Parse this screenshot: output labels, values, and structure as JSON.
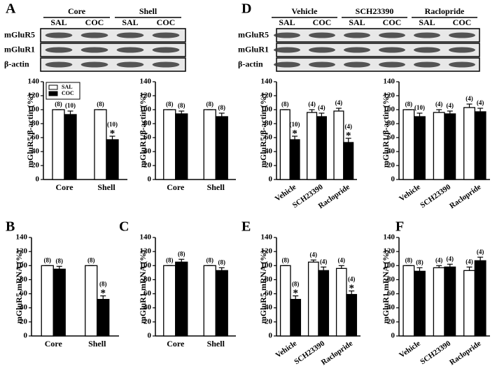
{
  "blots": [
    {
      "panel": "A",
      "groups": [
        {
          "label": "Core",
          "lanes": [
            "SAL",
            "COC"
          ]
        },
        {
          "label": "Shell",
          "lanes": [
            "SAL",
            "COC"
          ]
        }
      ],
      "rows": [
        "mGluR5",
        "mGluR1",
        "β-actin"
      ]
    },
    {
      "panel": "D",
      "groups": [
        {
          "label": "Vehicle",
          "lanes": [
            "SAL",
            "COC"
          ]
        },
        {
          "label": "SCH23390",
          "lanes": [
            "SAL",
            "COC"
          ]
        },
        {
          "label": "Raclopride",
          "lanes": [
            "SAL",
            "COC"
          ]
        }
      ],
      "rows": [
        "mGluR5",
        "mGluR1",
        "β-actin"
      ]
    }
  ],
  "chart_data": [
    {
      "type": "bar",
      "ylabel": "mGluR5/β-actin (%)",
      "categories": [
        "Core",
        "Shell"
      ],
      "ylim": [
        0,
        140
      ],
      "yticks": [
        0,
        20,
        40,
        60,
        80,
        100,
        120,
        140
      ],
      "legend": "upper left",
      "series": [
        {
          "name": "SAL",
          "color": "#ffffff",
          "values": [
            100,
            100
          ],
          "errors": [
            0,
            0
          ],
          "n_labels": [
            "(8)",
            "(8)"
          ],
          "sig": [
            null,
            null
          ]
        },
        {
          "name": "COC",
          "color": "#000000",
          "values": [
            93,
            57
          ],
          "errors": [
            5,
            5
          ],
          "n_labels": [
            "(10)",
            "(10)"
          ],
          "sig": [
            null,
            "*"
          ]
        }
      ]
    },
    {
      "type": "bar",
      "ylabel": "mGluR1/β-actin (%)",
      "categories": [
        "Core",
        "Shell"
      ],
      "ylim": [
        0,
        140
      ],
      "yticks": [
        0,
        20,
        40,
        60,
        80,
        100,
        120,
        140
      ],
      "series": [
        {
          "color": "#ffffff",
          "values": [
            100,
            100
          ],
          "errors": [
            0,
            0
          ],
          "n_labels": [
            "(8)",
            "(8)"
          ],
          "sig": [
            null,
            null
          ]
        },
        {
          "color": "#000000",
          "values": [
            94,
            90
          ],
          "errors": [
            4,
            5
          ],
          "n_labels": [
            "(8)",
            "(8)"
          ],
          "sig": [
            null,
            null
          ]
        }
      ]
    },
    {
      "type": "bar",
      "ylabel": "mGluR5/β-actin (%)",
      "categories": [
        "Vehicle",
        "SCH23390",
        "Raclopride"
      ],
      "xtick_rotation": -35,
      "ylim": [
        0,
        140
      ],
      "yticks": [
        0,
        20,
        40,
        60,
        80,
        100,
        120,
        140
      ],
      "series": [
        {
          "color": "#ffffff",
          "values": [
            100,
            96,
            98
          ],
          "errors": [
            0,
            4,
            4
          ],
          "n_labels": [
            "(8)",
            "(4)",
            "(4)"
          ],
          "sig": [
            null,
            null,
            null
          ]
        },
        {
          "color": "#000000",
          "values": [
            57,
            90,
            53
          ],
          "errors": [
            5,
            5,
            6
          ],
          "n_labels": [
            "(10)",
            "(4)",
            "(4)"
          ],
          "sig": [
            "*",
            null,
            "*"
          ]
        }
      ]
    },
    {
      "type": "bar",
      "ylabel": "mGluR1/β-actin (%)",
      "categories": [
        "Vehicle",
        "SCH23390",
        "Raclopride"
      ],
      "xtick_rotation": -35,
      "ylim": [
        0,
        140
      ],
      "yticks": [
        0,
        20,
        40,
        60,
        80,
        100,
        120,
        140
      ],
      "series": [
        {
          "color": "#ffffff",
          "values": [
            100,
            96,
            103
          ],
          "errors": [
            0,
            4,
            5
          ],
          "n_labels": [
            "(8)",
            "(4)",
            "(4)"
          ],
          "sig": [
            null,
            null,
            null
          ]
        },
        {
          "color": "#000000",
          "values": [
            90,
            94,
            97
          ],
          "errors": [
            5,
            4,
            5
          ],
          "n_labels": [
            "(10)",
            "(4)",
            "(4)"
          ],
          "sig": [
            null,
            null,
            null
          ]
        }
      ]
    },
    {
      "type": "bar",
      "panel": "B",
      "ylabel": "mGluR5 mRNA (%)",
      "categories": [
        "Core",
        "Shell"
      ],
      "ylim": [
        0,
        140
      ],
      "yticks": [
        0,
        20,
        40,
        60,
        80,
        100,
        120,
        140
      ],
      "series": [
        {
          "color": "#ffffff",
          "values": [
            100,
            100
          ],
          "errors": [
            0,
            0
          ],
          "n_labels": [
            "(8)",
            "(8)"
          ],
          "sig": [
            null,
            null
          ]
        },
        {
          "color": "#000000",
          "values": [
            95,
            52
          ],
          "errors": [
            4,
            5
          ],
          "n_labels": [
            "(8)",
            "(8)"
          ],
          "sig": [
            null,
            "*"
          ]
        }
      ]
    },
    {
      "type": "bar",
      "panel": "C",
      "ylabel": "mGluR1 mRNA (%)",
      "categories": [
        "Core",
        "Shell"
      ],
      "ylim": [
        0,
        140
      ],
      "yticks": [
        0,
        20,
        40,
        60,
        80,
        100,
        120,
        140
      ],
      "series": [
        {
          "color": "#ffffff",
          "values": [
            100,
            100
          ],
          "errors": [
            0,
            0
          ],
          "n_labels": [
            "(8)",
            "(8)"
          ],
          "sig": [
            null,
            null
          ]
        },
        {
          "color": "#000000",
          "values": [
            105,
            93
          ],
          "errors": [
            4,
            4
          ],
          "n_labels": [
            "(8)",
            "(8)"
          ],
          "sig": [
            null,
            null
          ]
        }
      ]
    },
    {
      "type": "bar",
      "panel": "E",
      "ylabel": "mGluR5 mRNA (%)",
      "categories": [
        "Vehicle",
        "SCH23390",
        "Raclopride"
      ],
      "xtick_rotation": -35,
      "ylim": [
        0,
        140
      ],
      "yticks": [
        0,
        20,
        40,
        60,
        80,
        100,
        120,
        140
      ],
      "series": [
        {
          "color": "#ffffff",
          "values": [
            100,
            105,
            96
          ],
          "errors": [
            0,
            3,
            4
          ],
          "n_labels": [
            "(8)",
            "(4)",
            "(4)"
          ],
          "sig": [
            null,
            null,
            null
          ]
        },
        {
          "color": "#000000",
          "values": [
            52,
            93,
            59
          ],
          "errors": [
            5,
            5,
            5
          ],
          "n_labels": [
            "(8)",
            "(4)",
            "(4)"
          ],
          "sig": [
            "*",
            null,
            "*"
          ]
        }
      ]
    },
    {
      "type": "bar",
      "panel": "F",
      "ylabel": "mGluR1 mRNA (%)",
      "categories": [
        "Vehicle",
        "SCH23390",
        "Raclopride"
      ],
      "xtick_rotation": -35,
      "ylim": [
        0,
        140
      ],
      "yticks": [
        0,
        20,
        40,
        60,
        80,
        100,
        120,
        140
      ],
      "series": [
        {
          "color": "#ffffff",
          "values": [
            100,
            97,
            93
          ],
          "errors": [
            0,
            3,
            5
          ],
          "n_labels": [
            "(8)",
            "(4)",
            "(4)"
          ],
          "sig": [
            null,
            null,
            null
          ]
        },
        {
          "color": "#000000",
          "values": [
            92,
            98,
            107
          ],
          "errors": [
            5,
            4,
            5
          ],
          "n_labels": [
            "(8)",
            "(4)",
            "(4)"
          ],
          "sig": [
            null,
            null,
            null
          ]
        }
      ]
    }
  ]
}
